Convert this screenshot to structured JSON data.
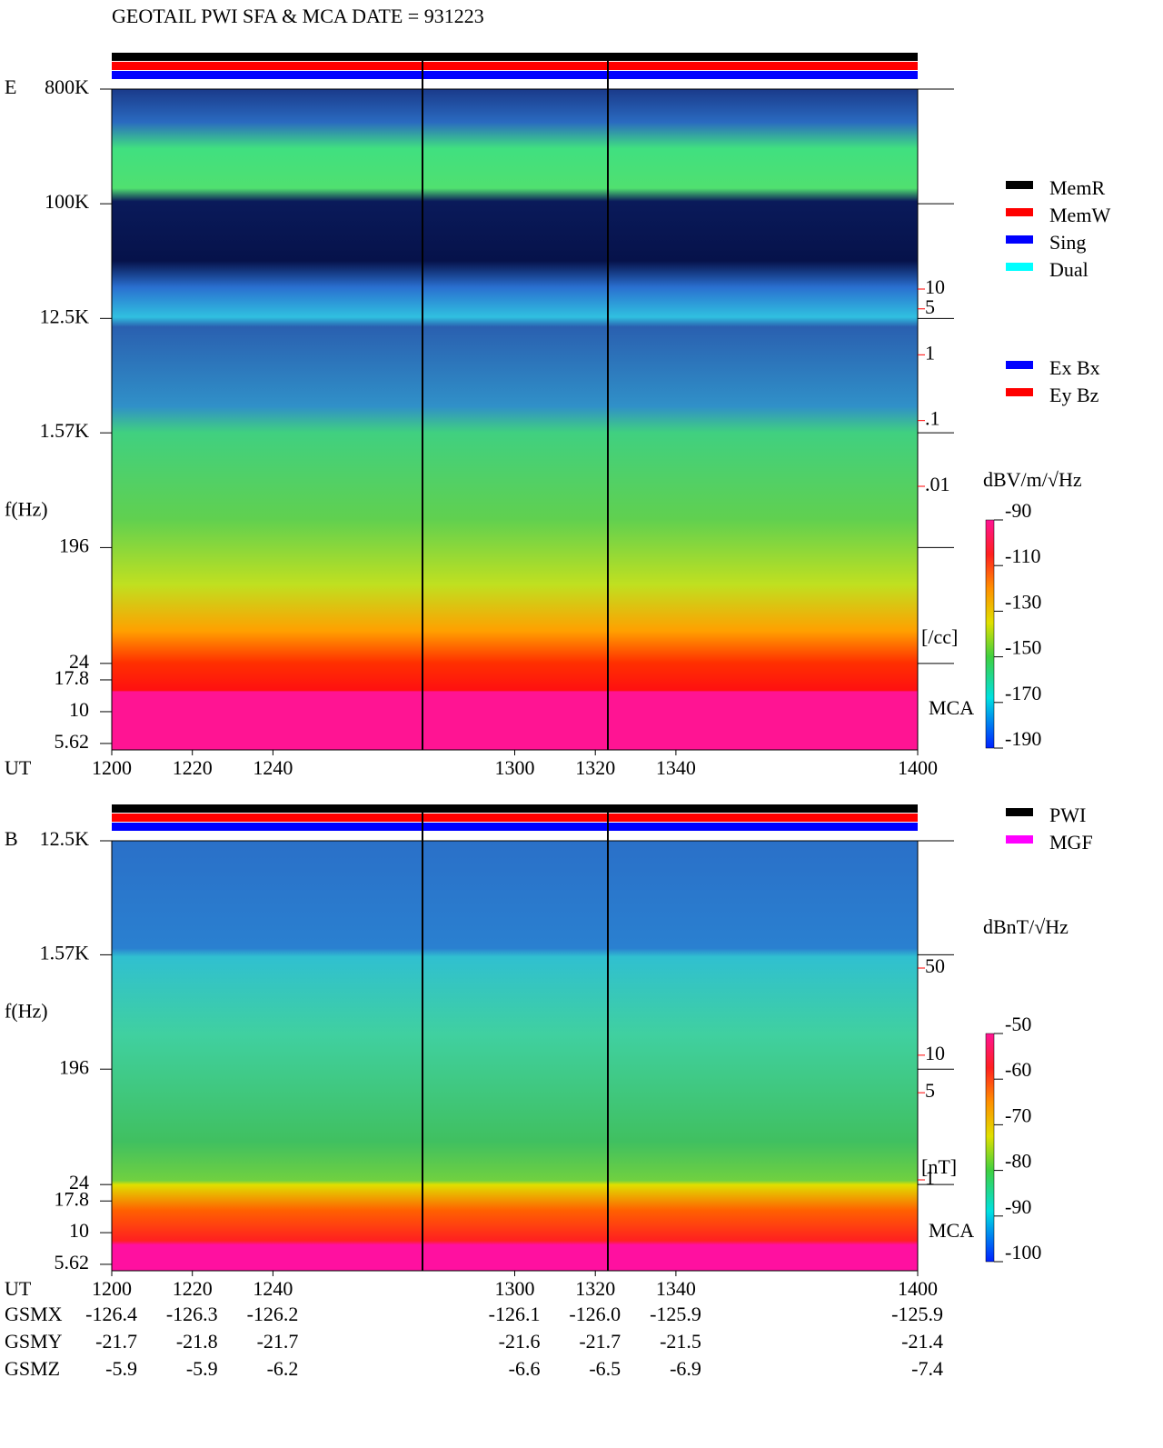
{
  "title": "GEOTAIL  PWI SFA & MCA   DATE = 931223",
  "chart_data": [
    {
      "type": "spectrogram",
      "panel_label": "E",
      "y_label": "f(Hz)",
      "x_label": "UT",
      "log_y": true,
      "ylim": [
        5,
        800000
      ],
      "yticks": [
        {
          "value": 800000,
          "label": "800K"
        },
        {
          "value": 100000,
          "label": "100K"
        },
        {
          "value": 12500,
          "label": "12.5K"
        },
        {
          "value": 1570,
          "label": "1.57K"
        },
        196,
        24,
        17.8,
        10,
        5.62
      ],
      "xlim": [
        1200,
        1400
      ],
      "xticks": [
        1200,
        1220,
        1240,
        1300,
        1320,
        1340,
        1400
      ],
      "mca_label": "MCA",
      "colorbar": {
        "label": "dBV/m/√Hz",
        "lim": [
          -190,
          -90
        ],
        "ticks": [
          -90,
          -110,
          -130,
          -150,
          -170,
          -190
        ]
      },
      "legend": [
        {
          "name": "MemR",
          "color": "#000000"
        },
        {
          "name": "MemW",
          "color": "#ff0000"
        },
        {
          "name": "Sing",
          "color": "#0000ff"
        },
        {
          "name": "Dual",
          "color": "#00ffff"
        }
      ],
      "legend2": [
        {
          "name": "Ex Bx",
          "color": "#0000ff"
        },
        {
          "name": "Ey Bz",
          "color": "#ff0000"
        }
      ],
      "side_axis": {
        "label": "[/cc]",
        "color": "#ff0000",
        "lim": [
          0.01,
          10
        ],
        "ticks": [
          10,
          5,
          1,
          {
            "value": 0.1,
            "label": ".1"
          },
          {
            "value": 0.01,
            "label": ".01"
          }
        ]
      }
    },
    {
      "type": "spectrogram",
      "panel_label": "B",
      "y_label": "f(Hz)",
      "x_label": "UT",
      "log_y": true,
      "ylim": [
        5,
        12500
      ],
      "yticks": [
        {
          "value": 12500,
          "label": "12.5K"
        },
        {
          "value": 1570,
          "label": "1.57K"
        },
        196,
        24,
        17.8,
        10,
        5.62
      ],
      "xlim": [
        1200,
        1400
      ],
      "xticks": [
        1200,
        1220,
        1240,
        1300,
        1320,
        1340,
        1400
      ],
      "mca_label": "MCA",
      "colorbar": {
        "label": "dBnT/√Hz",
        "lim": [
          -100,
          -50
        ],
        "ticks": [
          -50,
          -60,
          -70,
          -80,
          -90,
          -100
        ]
      },
      "legend": [
        {
          "name": "PWI",
          "color": "#000000"
        },
        {
          "name": "MGF",
          "color": "#ff00ff"
        }
      ],
      "side_axis": {
        "label": "[nT]",
        "color": "#ff0000",
        "lim": [
          1,
          50
        ],
        "ticks": [
          50,
          10,
          5,
          1
        ]
      }
    }
  ],
  "orbit_table": {
    "rows": [
      {
        "label": "GSMX",
        "values": [
          "-126.4",
          "-126.3",
          "-126.2",
          "-126.1",
          "-126.0",
          "-125.9",
          "-125.9"
        ]
      },
      {
        "label": "GSMY",
        "values": [
          "-21.7",
          "-21.8",
          "-21.7",
          "-21.6",
          "-21.7",
          "-21.5",
          "-21.4"
        ]
      },
      {
        "label": "GSMZ",
        "values": [
          "-5.9",
          "-5.9",
          "-6.2",
          "-6.6",
          "-6.5",
          "-6.9",
          "-7.4"
        ]
      }
    ]
  }
}
